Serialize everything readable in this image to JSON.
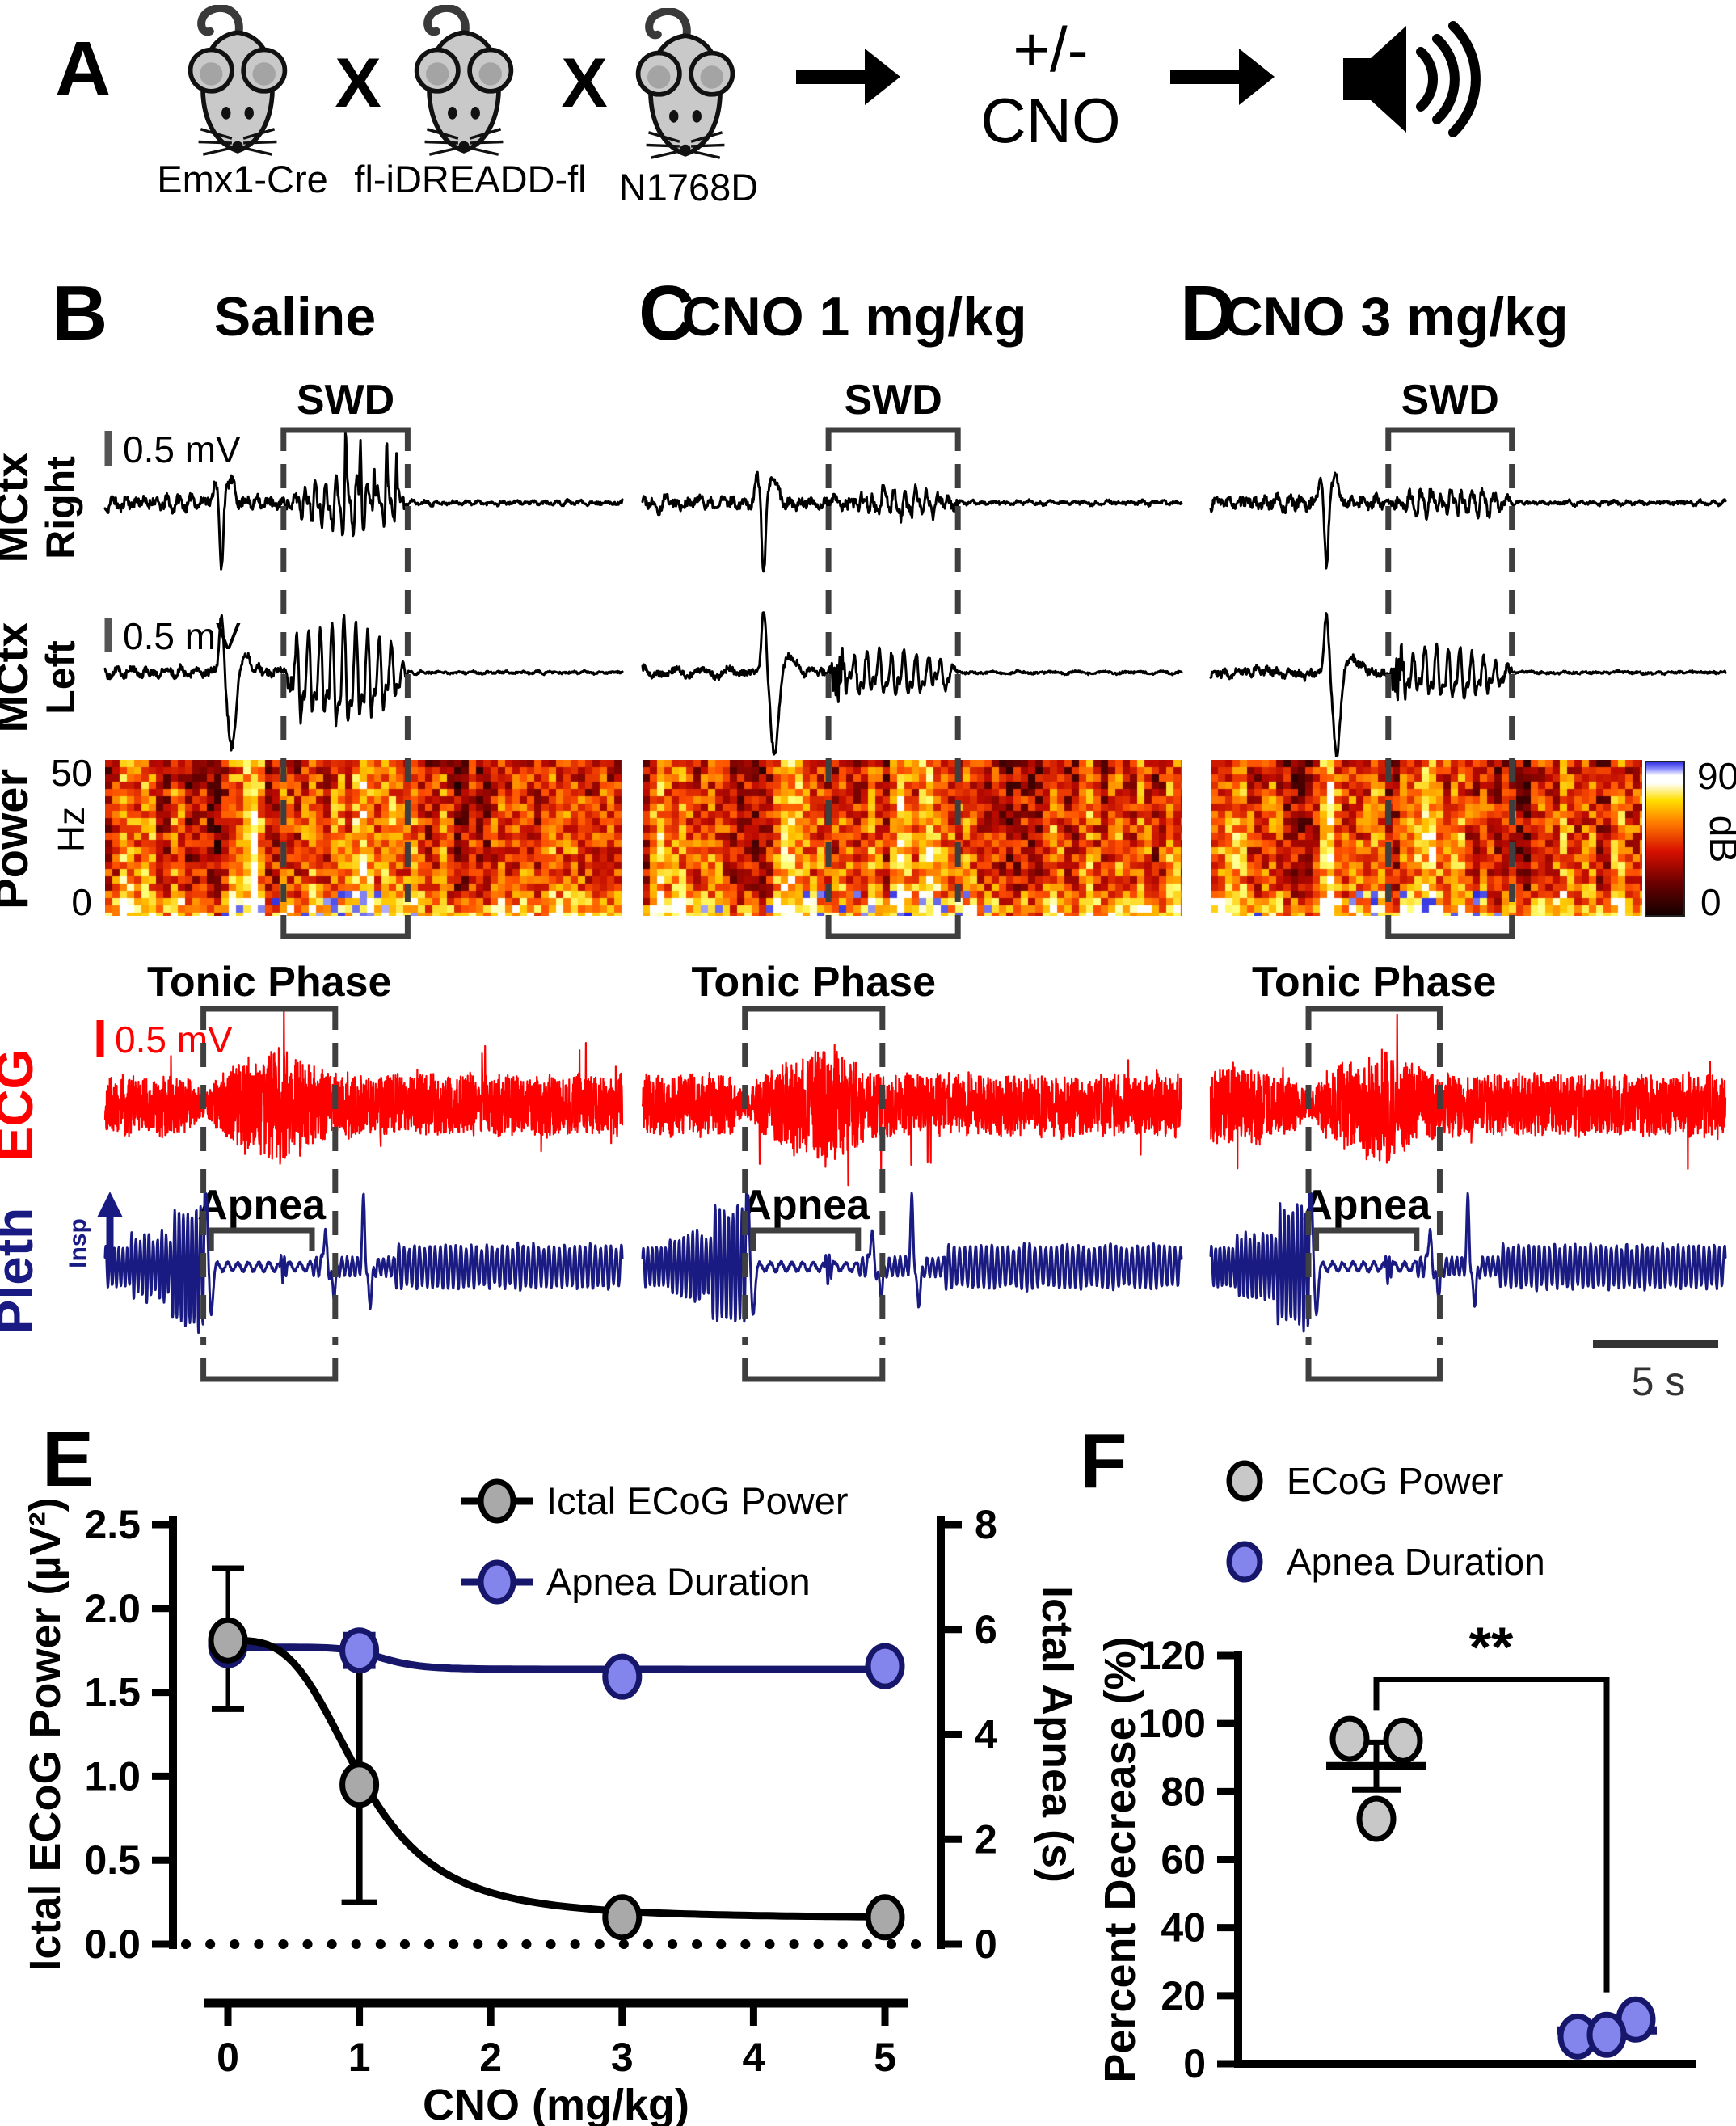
{
  "panel_a": {
    "label": "A",
    "mice": [
      {
        "name": "Emx1-Cre"
      },
      {
        "name": "fl-iDREADD-fl"
      },
      {
        "name": "N1768D"
      }
    ],
    "cross": "X",
    "cno_line1": "+/-",
    "cno_line2": "CNO",
    "arrow_icon": "right-arrow",
    "speaker_icon": "speaker-sound-waves"
  },
  "traces": {
    "panels": [
      {
        "label": "B",
        "title": "Saline"
      },
      {
        "label": "C",
        "title": "CNO 1 mg/kg"
      },
      {
        "label": "D",
        "title": "CNO 3 mg/kg"
      }
    ],
    "annotations": {
      "swd": "SWD",
      "tonic_phase": "Tonic Phase",
      "apnea": "Apnea"
    },
    "row_labels": {
      "mctx_right_line1": "MCtx",
      "mctx_right_line2": "Right",
      "mctx_left_line1": "MCtx",
      "mctx_left_line2": "Left",
      "power": "Power",
      "power_unit": "Hz",
      "power_top": "50",
      "power_bottom": "0",
      "ecg": "ECG",
      "pleth": "Pleth",
      "insp": "Insp"
    },
    "scale_bars": {
      "ecog_right": "0.5 mV",
      "ecog_left": "0.5 mV",
      "ecg": "0.5 mV",
      "time": "5 s"
    },
    "colorbar": {
      "top": "90",
      "unit": "dB",
      "bottom": "0"
    },
    "colors": {
      "ecg": "#ff0000",
      "pleth": "#1a1a83",
      "ecog": "#000000",
      "box": "#3f3f3f"
    }
  },
  "chart_data": [
    {
      "panel": "E",
      "type": "line",
      "xlabel": "CNO (mg/kg)",
      "x_ticks": [
        "0",
        "1",
        "2",
        "3",
        "4",
        "5"
      ],
      "xlim": [
        0,
        5
      ],
      "left_axis": {
        "label": "Ictal ECoG Power (µV²)",
        "ticks": [
          "0.0",
          "0.5",
          "1.0",
          "1.5",
          "2.0",
          "2.5"
        ],
        "range": [
          0,
          2.5
        ]
      },
      "right_axis": {
        "label": "Ictal Apnea (s)",
        "ticks": [
          "0",
          "2",
          "4",
          "6",
          "8"
        ],
        "range": [
          0,
          8
        ]
      },
      "series": [
        {
          "name": "Ictal ECoG Power",
          "axis": "left",
          "x": [
            0,
            1,
            3,
            5
          ],
          "y": [
            1.81,
            0.95,
            0.16,
            0.16
          ],
          "err_low": [
            0.41,
            0.7,
            0,
            0
          ],
          "err_high": [
            0.43,
            0.77,
            0,
            0
          ],
          "marker_fill": "#a9a9a9",
          "stroke": "#000000",
          "fit": "sigmoid_decay"
        },
        {
          "name": "Apnea Duration",
          "axis": "right",
          "x": [
            0,
            1,
            3,
            5
          ],
          "y": [
            5.7,
            5.6,
            5.1,
            5.3
          ],
          "err_low": [
            0.18,
            0.3,
            0,
            0
          ],
          "err_high": [
            0.18,
            0.3,
            0,
            0
          ],
          "marker_fill": "#8384ec",
          "stroke": "#16166b",
          "fit": "flat_step"
        }
      ],
      "baseline_dotted_y": 0,
      "legend_position": "top-right-inside"
    },
    {
      "panel": "F",
      "type": "scatter",
      "ylabel": "Percent Decrease (%)",
      "y_ticks": [
        "0",
        "20",
        "40",
        "60",
        "80",
        "100",
        "120"
      ],
      "ylim": [
        0,
        120
      ],
      "groups": [
        {
          "name": "ECoG Power",
          "points": [
            95.5,
            95,
            72
          ],
          "mean": 87.5,
          "sem": 7,
          "marker_fill": "#c8c8c8",
          "stroke": "#000000"
        },
        {
          "name": "Apnea Duration",
          "points": [
            8,
            13,
            8.5
          ],
          "mean": 9.8,
          "sem": 1.7,
          "marker_fill": "#8384ec",
          "stroke": "#16166b"
        }
      ],
      "significance": "**",
      "legend_position": "top"
    }
  ]
}
